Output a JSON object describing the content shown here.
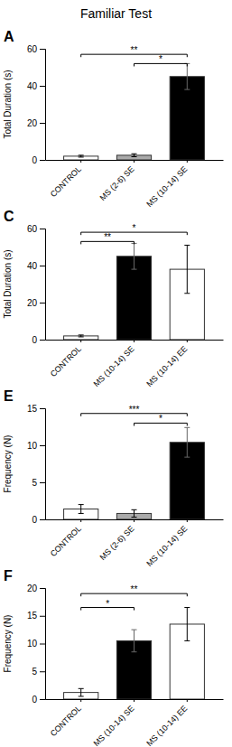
{
  "title": "Familiar Test",
  "chart_data": [
    {
      "type": "bar",
      "title": "A",
      "y_label": "Total Duration (s)",
      "categories": [
        "CONTROL",
        "MS (2-6) SE",
        "MS (10-14) SE"
      ],
      "values": [
        2.0,
        2.5,
        45.0
      ],
      "errors": [
        0.5,
        0.8,
        7.0
      ],
      "colors": [
        "white",
        "#aaaaaa",
        "black"
      ],
      "ylim": [
        0,
        60
      ],
      "yticks": [
        0,
        20,
        40,
        60
      ],
      "grid": false,
      "annotations": [
        {
          "text": "**",
          "x1": "CONTROL",
          "x2": "MS (10-14) SE",
          "y": 57
        },
        {
          "text": "*",
          "x1": "MS (2-6) SE",
          "x2": "MS (10-14) SE",
          "y": 52
        }
      ]
    },
    {
      "type": "bar",
      "title": "C",
      "y_label": "Total Duration (s)",
      "categories": [
        "CONTROL",
        "MS (10-14) SE",
        "MS (10-14) EE"
      ],
      "values": [
        2.0,
        45.0,
        38.0
      ],
      "errors": [
        0.5,
        7.0,
        13.0
      ],
      "colors": [
        "white",
        "black",
        "white"
      ],
      "ylim": [
        0,
        60
      ],
      "yticks": [
        0,
        20,
        40,
        60
      ],
      "grid": false,
      "annotations": [
        {
          "text": "**",
          "x1": "CONTROL",
          "x2": "MS (10-14) SE",
          "y": 53
        },
        {
          "text": "*",
          "x1": "CONTROL",
          "x2": "MS (10-14) EE",
          "y": 58
        }
      ]
    },
    {
      "type": "bar",
      "title": "E",
      "y_label": "Frequency (N)",
      "categories": [
        "CONTROL",
        "MS (2-6) SE",
        "MS (10-14) SE"
      ],
      "values": [
        1.4,
        0.8,
        10.4
      ],
      "errors": [
        0.6,
        0.5,
        2.0
      ],
      "colors": [
        "white",
        "#aaaaaa",
        "black"
      ],
      "ylim": [
        0,
        15
      ],
      "yticks": [
        0,
        5,
        10,
        15
      ],
      "grid": false,
      "annotations": [
        {
          "text": "***",
          "x1": "CONTROL",
          "x2": "MS (10-14) SE",
          "y": 14.3
        },
        {
          "text": "*",
          "x1": "MS (2-6) SE",
          "x2": "MS (10-14) SE",
          "y": 13.0
        }
      ]
    },
    {
      "type": "bar",
      "title": "F",
      "y_label": "Frequency (N)",
      "categories": [
        "CONTROL",
        "MS (10-14) SE",
        "MS (10-14) EE"
      ],
      "values": [
        1.2,
        10.5,
        13.5
      ],
      "errors": [
        0.7,
        2.0,
        3.0
      ],
      "colors": [
        "white",
        "black",
        "white"
      ],
      "ylim": [
        0,
        20
      ],
      "yticks": [
        0,
        5,
        10,
        15,
        20
      ],
      "grid": false,
      "annotations": [
        {
          "text": "*",
          "x1": "CONTROL",
          "x2": "MS (10-14) SE",
          "y": 16.5
        },
        {
          "text": "**",
          "x1": "CONTROL",
          "x2": "MS (10-14) EE",
          "y": 19.0
        }
      ]
    }
  ]
}
